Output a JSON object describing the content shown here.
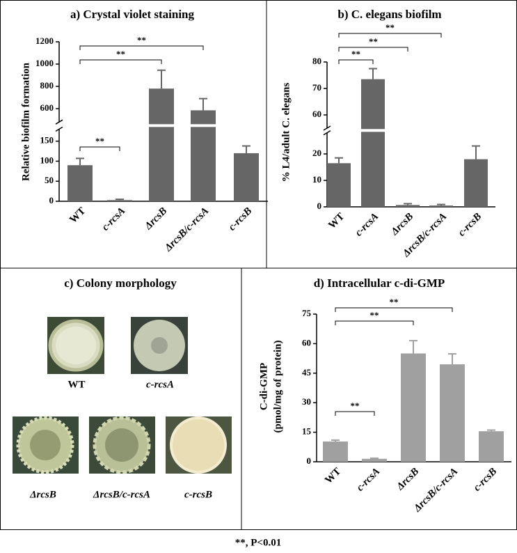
{
  "chart_data": [
    {
      "type": "bar",
      "title": "a) Crystal violet staining",
      "ylabel": [
        "Relative biofilm formation"
      ],
      "categories": [
        "WT",
        "c-rcsA",
        "ΔrcsB",
        "ΔrcsB/c-rcsA",
        "c-rcsB"
      ],
      "values": [
        90,
        3,
        780,
        585,
        120
      ],
      "errors": [
        17,
        2,
        165,
        105,
        18
      ],
      "color": "#666666",
      "ylim": [
        0,
        1200
      ],
      "ybreak": [
        180,
        480
      ],
      "yticks": [
        0,
        50,
        100,
        150,
        600,
        800,
        1000,
        1200
      ],
      "annotations": [
        {
          "label": "**",
          "from": 0,
          "to": 1
        },
        {
          "label": "**",
          "from": 0,
          "to": 2
        },
        {
          "label": "**",
          "from": 0,
          "to": 3
        }
      ]
    },
    {
      "type": "bar",
      "title": "b) C. elegans biofilm",
      "ylabel": [
        "% L4/adult C. elegans"
      ],
      "categories": [
        "WT",
        "c-rcsA",
        "ΔrcsB",
        "ΔrcsB/c-rcsA",
        "c-rcsB"
      ],
      "values": [
        16.5,
        73.5,
        0.7,
        0.5,
        18
      ],
      "errors": [
        2,
        4,
        0.5,
        0.4,
        5
      ],
      "color": "#666666",
      "ylim": [
        0,
        80
      ],
      "ybreak": [
        28,
        55
      ],
      "yticks": [
        0,
        10,
        20,
        60,
        70,
        80
      ],
      "annotations": [
        {
          "label": "**",
          "from": 0,
          "to": 1
        },
        {
          "label": "**",
          "from": 0,
          "to": 2
        },
        {
          "label": "**",
          "from": 0,
          "to": 3
        }
      ]
    },
    {
      "type": "bar",
      "title": "d) Intracellular c-di-GMP",
      "ylabel": [
        "C-di-GMP",
        "(pmol/mg of protein)"
      ],
      "categories": [
        "WT",
        "c-rcsA",
        "ΔrcsB",
        "ΔrcsB/c-rcsA",
        "c-rcsB"
      ],
      "values": [
        10.3,
        1.5,
        55,
        49.5,
        15.5
      ],
      "errors": [
        0.7,
        0.3,
        6.5,
        5.3,
        0.6
      ],
      "color": "#a0a0a0",
      "ylim": [
        0,
        75
      ],
      "yticks": [
        0,
        15,
        30,
        45,
        60,
        75
      ],
      "annotations": [
        {
          "label": "**",
          "from": 0,
          "to": 1
        },
        {
          "label": "**",
          "from": 0,
          "to": 2
        },
        {
          "label": "**",
          "from": 0,
          "to": 3
        }
      ]
    }
  ],
  "panel_c": {
    "title": "c) Colony morphology",
    "colonies": [
      "WT",
      "c-rcsA",
      "ΔrcsB",
      "ΔrcsB/c-rcsA",
      "c-rcsB"
    ]
  },
  "footnote": "**, P<0.01"
}
